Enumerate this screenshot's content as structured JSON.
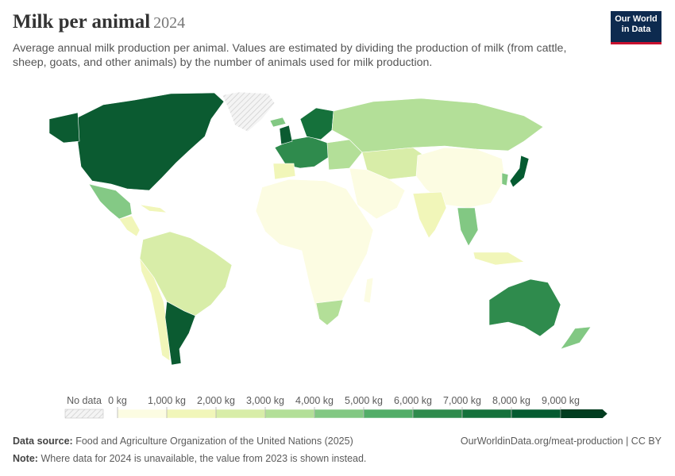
{
  "header": {
    "title": "Milk per animal",
    "year": "2024",
    "subtitle": "Average annual milk production per animal. Values are estimated by dividing the production of milk (from cattle, sheep, goats, and other animals) by the number of animals used for milk production.",
    "logo_line1": "Our World",
    "logo_line2": "in Data"
  },
  "legend": {
    "no_data": "No data",
    "ticks": [
      {
        "value": 0,
        "label": "0 kg"
      },
      {
        "value": 1000,
        "label": "1,000 kg"
      },
      {
        "value": 2000,
        "label": "2,000 kg"
      },
      {
        "value": 3000,
        "label": "3,000 kg"
      },
      {
        "value": 4000,
        "label": "4,000 kg"
      },
      {
        "value": 5000,
        "label": "5,000 kg"
      },
      {
        "value": 6000,
        "label": "6,000 kg"
      },
      {
        "value": 7000,
        "label": "7,000 kg"
      },
      {
        "value": 8000,
        "label": "8,000 kg"
      },
      {
        "value": 9000,
        "label": "9,000 kg"
      }
    ],
    "colors": [
      "#fcfce2",
      "#f1f6b9",
      "#d8eda8",
      "#b3df98",
      "#82c883",
      "#52ad68",
      "#2f8b4d",
      "#15713b",
      "#055b31",
      "#023d20"
    ]
  },
  "footer": {
    "source_label": "Data source:",
    "source": "Food and Agriculture Organization of the United Nations (2025)",
    "url": "OurWorldinData.org/meat-production | CC BY",
    "note_label": "Note:",
    "note": "Where data for 2024 is unavailable, the value from 2023 is shown instead."
  }
}
